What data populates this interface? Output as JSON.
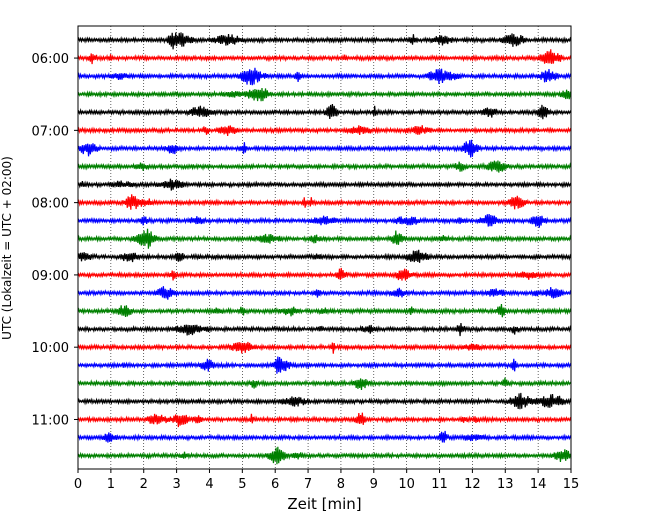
{
  "chart_data": {
    "type": "line",
    "title": "",
    "xlabel": "Zeit  [min]",
    "ylabel": "UTC (Lokalzeit = UTC + 02:00)",
    "xlim": [
      0,
      15
    ],
    "x_ticks": [
      "0",
      "1",
      "2",
      "3",
      "4",
      "5",
      "6",
      "7",
      "8",
      "9",
      "10",
      "11",
      "12",
      "13",
      "14",
      "15"
    ],
    "y_tick_labels": [
      "06:00",
      "07:00",
      "08:00",
      "09:00",
      "10:00",
      "11:00"
    ],
    "vertical_grid": true,
    "grid_style": "dotted",
    "trace_interval_minutes": 15,
    "start_time": "05:45",
    "trace_colors": [
      "#000000",
      "#ff0000",
      "#0000ff",
      "#008000"
    ],
    "traces": [
      {
        "start": "05:45",
        "color": "#000000"
      },
      {
        "start": "06:00",
        "color": "#ff0000"
      },
      {
        "start": "06:15",
        "color": "#0000ff"
      },
      {
        "start": "06:30",
        "color": "#008000"
      },
      {
        "start": "06:45",
        "color": "#000000"
      },
      {
        "start": "07:00",
        "color": "#ff0000"
      },
      {
        "start": "07:15",
        "color": "#0000ff"
      },
      {
        "start": "07:30",
        "color": "#008000"
      },
      {
        "start": "07:45",
        "color": "#000000"
      },
      {
        "start": "08:00",
        "color": "#ff0000"
      },
      {
        "start": "08:15",
        "color": "#0000ff"
      },
      {
        "start": "08:30",
        "color": "#008000"
      },
      {
        "start": "08:45",
        "color": "#000000"
      },
      {
        "start": "09:00",
        "color": "#ff0000"
      },
      {
        "start": "09:15",
        "color": "#0000ff"
      },
      {
        "start": "09:30",
        "color": "#008000"
      },
      {
        "start": "09:45",
        "color": "#000000"
      },
      {
        "start": "10:00",
        "color": "#ff0000"
      },
      {
        "start": "10:15",
        "color": "#0000ff"
      },
      {
        "start": "10:30",
        "color": "#008000"
      },
      {
        "start": "10:45",
        "color": "#000000"
      },
      {
        "start": "11:00",
        "color": "#ff0000"
      },
      {
        "start": "11:15",
        "color": "#0000ff"
      },
      {
        "start": "11:30",
        "color": "#008000"
      }
    ]
  }
}
